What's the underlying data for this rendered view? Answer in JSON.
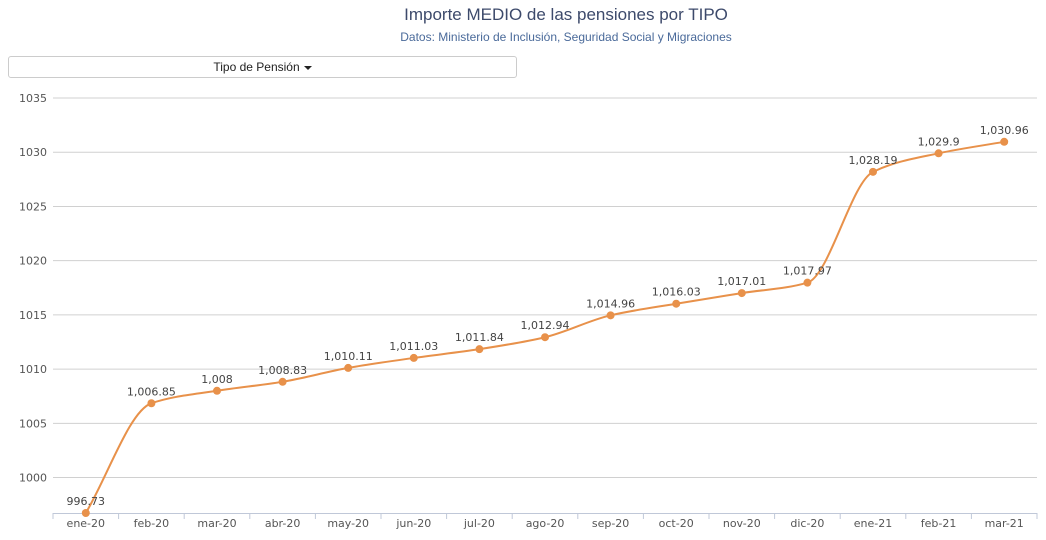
{
  "header": {
    "title": "Importe MEDIO de las pensiones por TIPO",
    "subtitle": "Datos: Ministerio de Inclusión, Seguridad Social y Migraciones"
  },
  "filter": {
    "label": "Tipo de Pensión"
  },
  "colors": {
    "series": "#e8914a",
    "grid": "#d0d0d0",
    "axis": "#c0c8d8"
  },
  "chart_data": {
    "type": "line",
    "title": "Importe MEDIO de las pensiones por TIPO",
    "subtitle": "Datos: Ministerio de Inclusión, Seguridad Social y Migraciones",
    "xlabel": "",
    "ylabel": "",
    "categories": [
      "ene-20",
      "feb-20",
      "mar-20",
      "abr-20",
      "may-20",
      "jun-20",
      "jul-20",
      "ago-20",
      "sep-20",
      "oct-20",
      "nov-20",
      "dic-20",
      "ene-21",
      "feb-21",
      "mar-21"
    ],
    "series": [
      {
        "values": [
          996.73,
          1006.85,
          1008,
          1008.83,
          1010.11,
          1011.03,
          1011.84,
          1012.94,
          1014.96,
          1016.03,
          1017.01,
          1017.97,
          1028.19,
          1029.9,
          1030.96
        ],
        "labels": [
          "996.73",
          "1,006.85",
          "1,008",
          "1,008.83",
          "1,010.11",
          "1,011.03",
          "1,011.84",
          "1,012.94",
          "1,014.96",
          "1,016.03",
          "1,017.01",
          "1,017.97",
          "1,028.19",
          "1,029.9",
          "1,030.96"
        ]
      }
    ],
    "y_ticks": [
      1000,
      1005,
      1010,
      1015,
      1020,
      1025,
      1030,
      1035
    ],
    "ylim": [
      996.73,
      1035
    ],
    "grid": true,
    "legend": "none",
    "smooth": true
  }
}
